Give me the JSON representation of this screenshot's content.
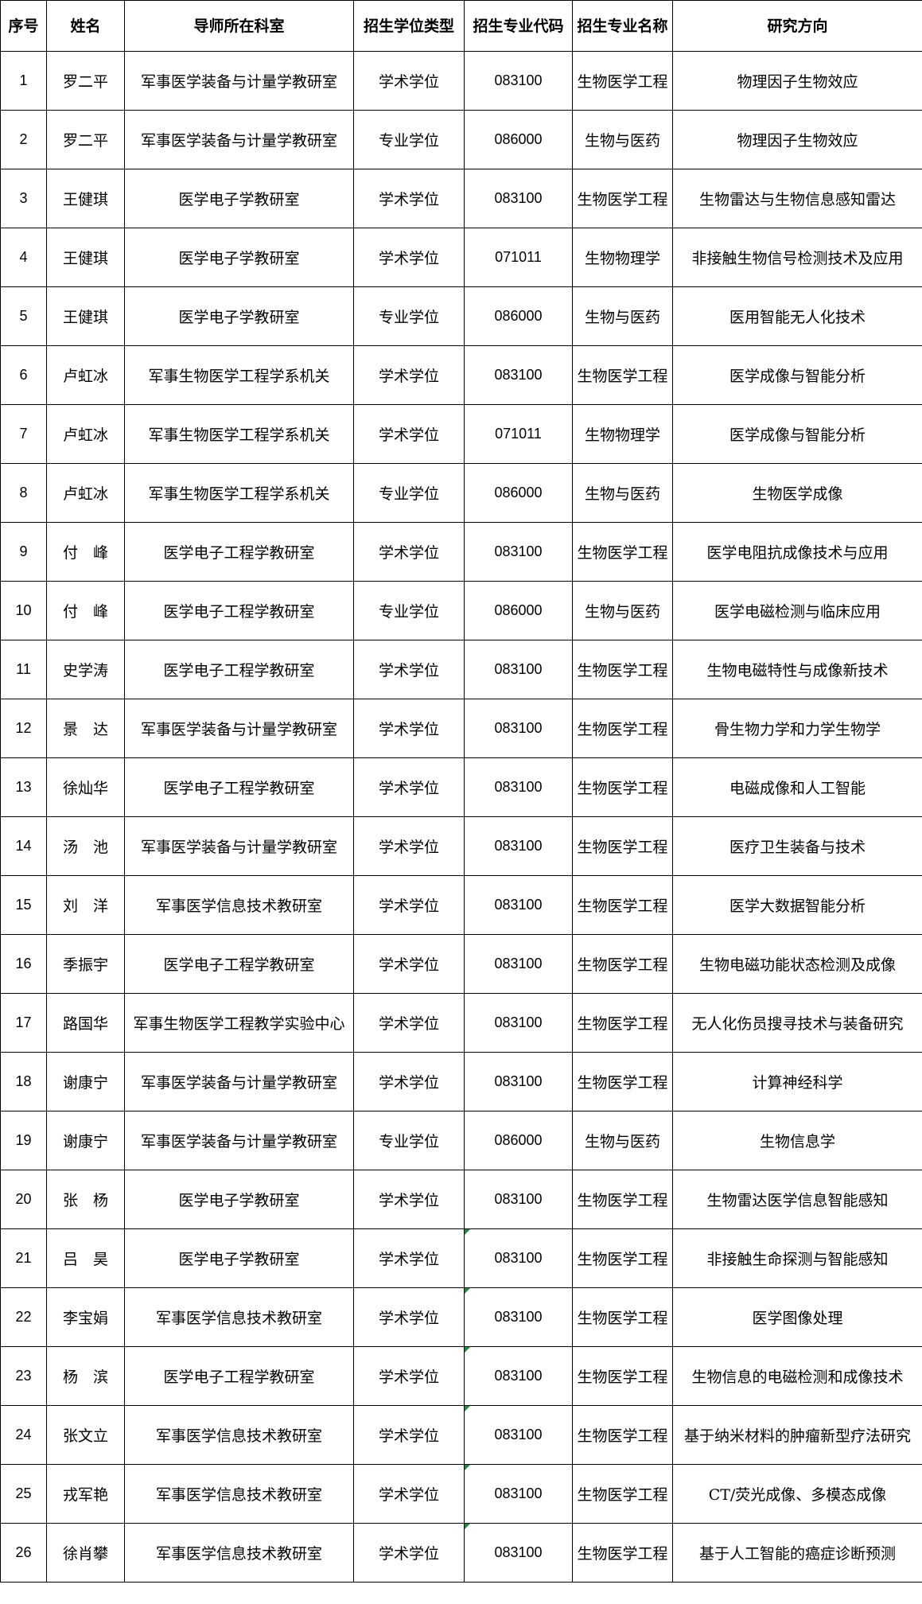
{
  "table": {
    "headers": [
      "序号",
      "姓名",
      "导师所在科室",
      "招生学位类型",
      "招生专业代码",
      "招生专业名称",
      "研究方向"
    ],
    "rows": [
      [
        "1",
        "罗二平",
        "军事医学装备与计量学教研室",
        "学术学位",
        "083100",
        "生物医学工程",
        "物理因子生物效应"
      ],
      [
        "2",
        "罗二平",
        "军事医学装备与计量学教研室",
        "专业学位",
        "086000",
        "生物与医药",
        "物理因子生物效应"
      ],
      [
        "3",
        "王健琪",
        "医学电子学教研室",
        "学术学位",
        "083100",
        "生物医学工程",
        "生物雷达与生物信息感知雷达"
      ],
      [
        "4",
        "王健琪",
        "医学电子学教研室",
        "学术学位",
        "071011",
        "生物物理学",
        "非接触生物信号检测技术及应用"
      ],
      [
        "5",
        "王健琪",
        "医学电子学教研室",
        "专业学位",
        "086000",
        "生物与医药",
        "医用智能无人化技术"
      ],
      [
        "6",
        "卢虹冰",
        "军事生物医学工程学系机关",
        "学术学位",
        "083100",
        "生物医学工程",
        "医学成像与智能分析"
      ],
      [
        "7",
        "卢虹冰",
        "军事生物医学工程学系机关",
        "学术学位",
        "071011",
        "生物物理学",
        "医学成像与智能分析"
      ],
      [
        "8",
        "卢虹冰",
        "军事生物医学工程学系机关",
        "专业学位",
        "086000",
        "生物与医药",
        "生物医学成像"
      ],
      [
        "9",
        "付　峰",
        "医学电子工程学教研室",
        "学术学位",
        "083100",
        "生物医学工程",
        "医学电阻抗成像技术与应用"
      ],
      [
        "10",
        "付　峰",
        "医学电子工程学教研室",
        "专业学位",
        "086000",
        "生物与医药",
        "医学电磁检测与临床应用"
      ],
      [
        "11",
        "史学涛",
        "医学电子工程学教研室",
        "学术学位",
        "083100",
        "生物医学工程",
        "生物电磁特性与成像新技术"
      ],
      [
        "12",
        "景　达",
        "军事医学装备与计量学教研室",
        "学术学位",
        "083100",
        "生物医学工程",
        "骨生物力学和力学生物学"
      ],
      [
        "13",
        "徐灿华",
        "医学电子工程学教研室",
        "学术学位",
        "083100",
        "生物医学工程",
        "电磁成像和人工智能"
      ],
      [
        "14",
        "汤　池",
        "军事医学装备与计量学教研室",
        "学术学位",
        "083100",
        "生物医学工程",
        "医疗卫生装备与技术"
      ],
      [
        "15",
        "刘　洋",
        "军事医学信息技术教研室",
        "学术学位",
        "083100",
        "生物医学工程",
        "医学大数据智能分析"
      ],
      [
        "16",
        "季振宇",
        "医学电子工程学教研室",
        "学术学位",
        "083100",
        "生物医学工程",
        "生物电磁功能状态检测及成像"
      ],
      [
        "17",
        "路国华",
        "军事生物医学工程教学实验中心",
        "学术学位",
        "083100",
        "生物医学工程",
        "无人化伤员搜寻技术与装备研究"
      ],
      [
        "18",
        "谢康宁",
        "军事医学装备与计量学教研室",
        "学术学位",
        "083100",
        "生物医学工程",
        "计算神经科学"
      ],
      [
        "19",
        "谢康宁",
        "军事医学装备与计量学教研室",
        "专业学位",
        "086000",
        "生物与医药",
        "生物信息学"
      ],
      [
        "20",
        "张　杨",
        "医学电子学教研室",
        "学术学位",
        "083100",
        "生物医学工程",
        "生物雷达医学信息智能感知"
      ],
      [
        "21",
        "吕　昊",
        "医学电子学教研室",
        "学术学位",
        "083100",
        "生物医学工程",
        "非接触生命探测与智能感知"
      ],
      [
        "22",
        "李宝娟",
        "军事医学信息技术教研室",
        "学术学位",
        "083100",
        "生物医学工程",
        "医学图像处理"
      ],
      [
        "23",
        "杨　滨",
        "医学电子工程学教研室",
        "学术学位",
        "083100",
        "生物医学工程",
        "生物信息的电磁检测和成像技术"
      ],
      [
        "24",
        "张文立",
        "军事医学信息技术教研室",
        "学术学位",
        "083100",
        "生物医学工程",
        "基于纳米材料的肿瘤新型疗法研究"
      ],
      [
        "25",
        "戎军艳",
        "军事医学信息技术教研室",
        "学术学位",
        "083100",
        "生物医学工程",
        "CT/荧光成像、多模态成像"
      ],
      [
        "26",
        "徐肖攀",
        "军事医学信息技术教研室",
        "学术学位",
        "083100",
        "生物医学工程",
        "基于人工智能的癌症诊断预测"
      ]
    ],
    "flagged_code_rows": [
      21,
      22,
      23,
      24,
      25,
      26
    ],
    "flag_color": "#1f8a3a"
  }
}
